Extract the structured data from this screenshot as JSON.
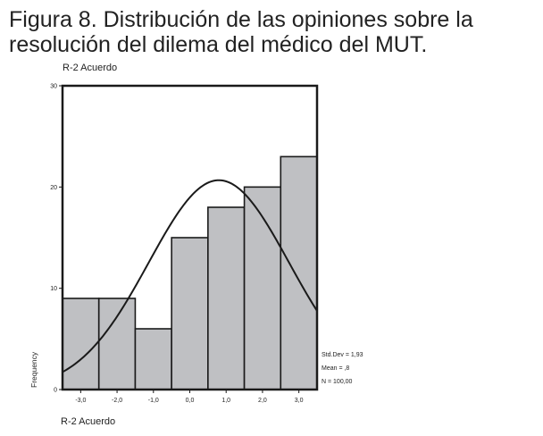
{
  "figure": {
    "title_line1": "Figura 8. Distribución de las opiniones sobre la",
    "title_line2": "resolución del dilema del médico del MUT."
  },
  "chart_data": {
    "type": "bar",
    "title": "R-2 Acuerdo",
    "xlabel": "R-2 Acuerdo",
    "ylabel": "Frequency",
    "categories": [
      "-3,0",
      "-2,0",
      "-1,0",
      "0,0",
      "1,0",
      "2,0",
      "3,0"
    ],
    "values": [
      9,
      9,
      6,
      15,
      18,
      20,
      23
    ],
    "ylim": [
      0,
      30
    ],
    "yticks": [
      "0",
      "10",
      "20",
      "30"
    ],
    "normal_curve": {
      "mean": 0.8,
      "std": 1.93,
      "n": 100
    },
    "stats": [
      "Std.Dev = 1,93",
      "Mean = ,8",
      "N = 100,00"
    ],
    "colors": {
      "bar_fill": "#bfc0c3",
      "bar_stroke": "#1a1a1a",
      "curve": "#1a1a1a"
    }
  }
}
